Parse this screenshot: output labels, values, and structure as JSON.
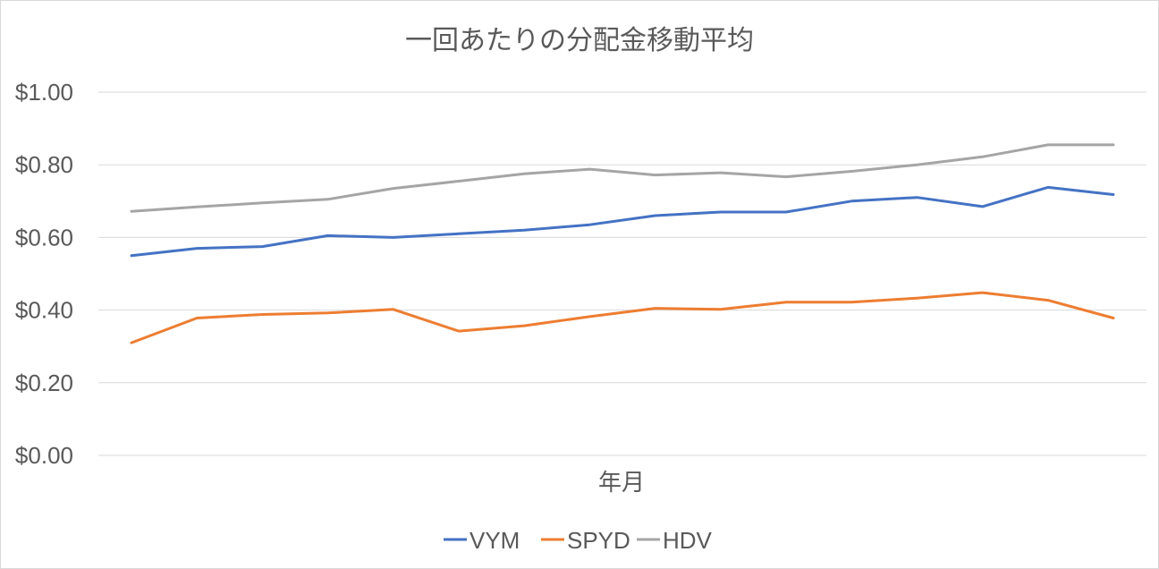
{
  "chart_data": {
    "type": "line",
    "title": "一回あたりの分配金移動平均",
    "xlabel": "年月",
    "ylabel": "",
    "ylim": [
      0,
      1.0
    ],
    "yticks": [
      "$0.00",
      "$0.20",
      "$0.40",
      "$0.60",
      "$0.80",
      "$1.00"
    ],
    "ytick_values": [
      0,
      0.2,
      0.4,
      0.6,
      0.8,
      1.0
    ],
    "grid": true,
    "legend_position": "bottom",
    "point_count": 16,
    "series": [
      {
        "name": "VYM",
        "color": "#4472C4",
        "values": [
          0.55,
          0.57,
          0.575,
          0.605,
          0.6,
          0.61,
          0.62,
          0.635,
          0.66,
          0.67,
          0.67,
          0.7,
          0.71,
          0.685,
          0.738,
          0.718
        ]
      },
      {
        "name": "SPYD",
        "color": "#ED7D31",
        "values": [
          0.31,
          0.378,
          0.388,
          0.392,
          0.402,
          0.342,
          0.357,
          0.382,
          0.405,
          0.402,
          0.422,
          0.422,
          0.433,
          0.448,
          0.427,
          0.378
        ]
      },
      {
        "name": "HDV",
        "color": "#A5A5A5",
        "values": [
          0.672,
          0.684,
          0.695,
          0.705,
          0.735,
          0.755,
          0.775,
          0.788,
          0.772,
          0.778,
          0.767,
          0.782,
          0.8,
          0.822,
          0.855,
          0.855
        ]
      }
    ]
  }
}
